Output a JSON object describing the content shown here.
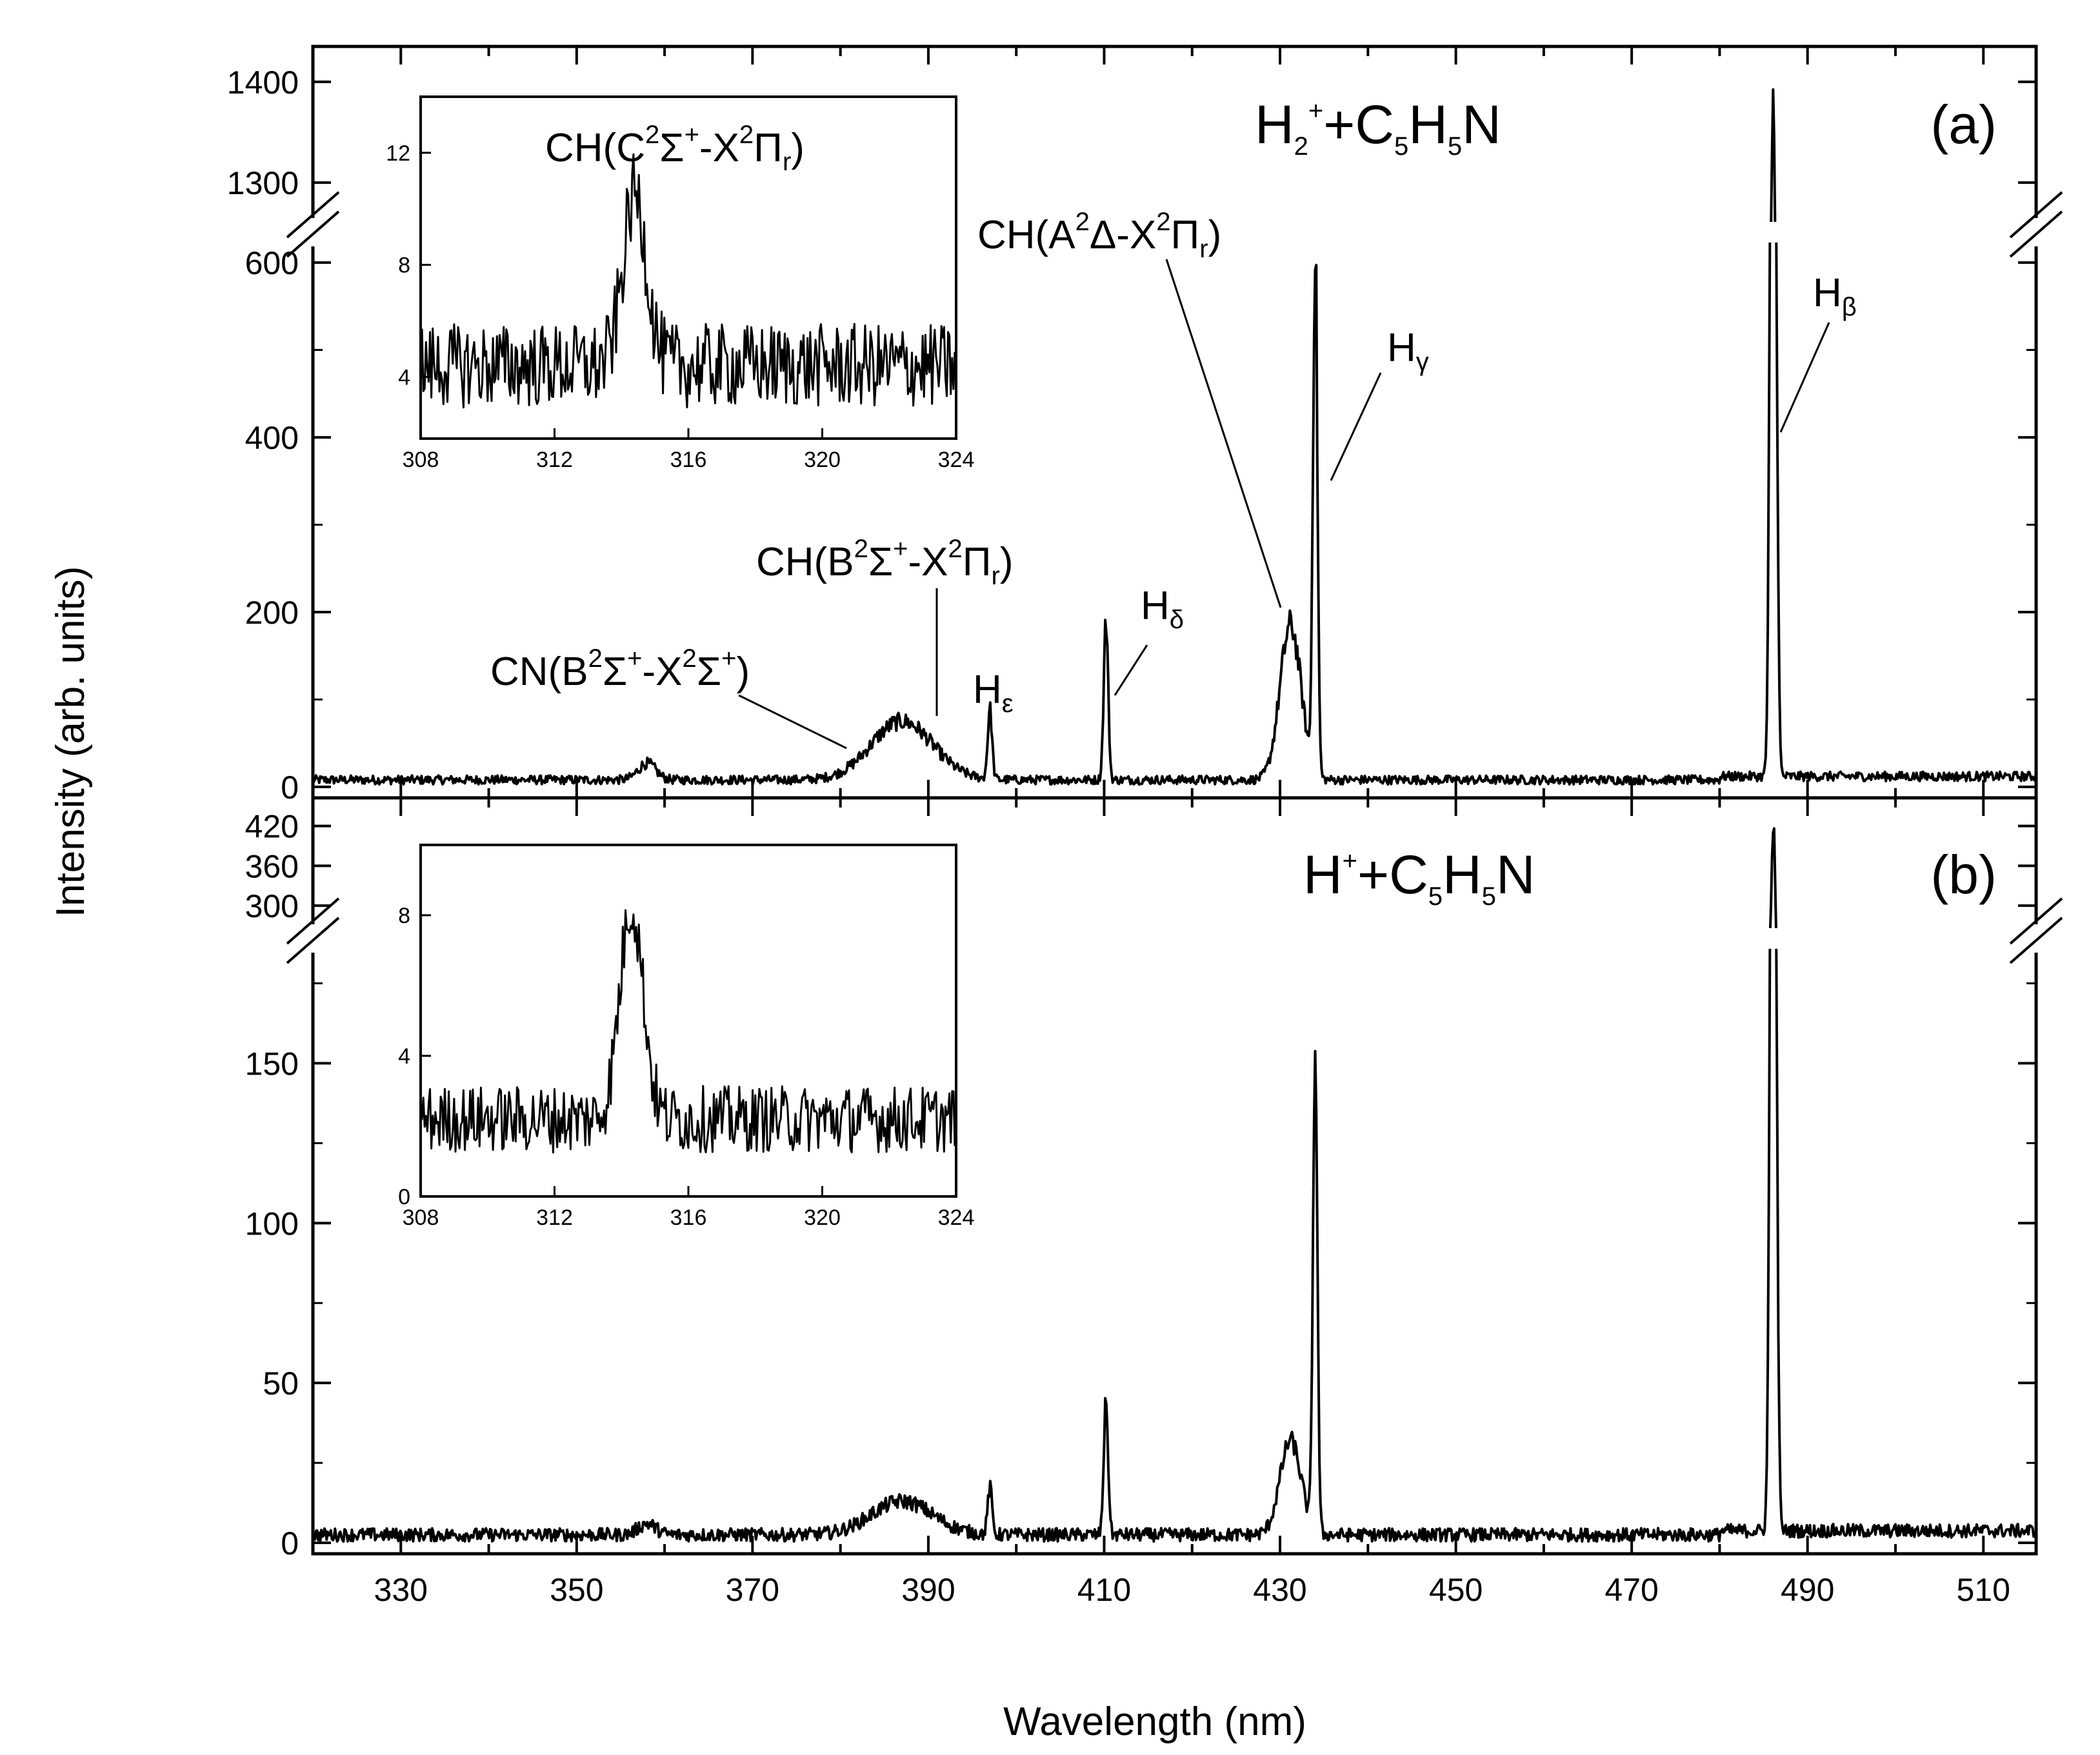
{
  "chart_data": [
    {
      "panel": "a",
      "type": "line",
      "panel_label": "(a)",
      "system_label": {
        "main": "H",
        "sub1": "2",
        "sup1": "+",
        "plus": "+C",
        "sub2": "5",
        "mid": "H",
        "sub3": "5",
        "end": "N"
      },
      "xlabel": "Wavelength (nm)",
      "ylabel": "Intensity (arb. units)",
      "xlim": [
        320,
        516
      ],
      "ylim_lower": [
        0,
        620
      ],
      "ylim_upper": [
        1270,
        1430
      ],
      "yticks_lower": [
        "0",
        "200",
        "400",
        "600"
      ],
      "yticks_upper": [
        "1300",
        "1400"
      ],
      "baseline": 8,
      "peaks": [
        {
          "x": 358,
          "y": 27,
          "width": 1.0
        },
        {
          "x": 387,
          "y": 75,
          "width": 3.5
        },
        {
          "x": 397,
          "y": 87,
          "width": 0.25
        },
        {
          "x": 410.2,
          "y": 190,
          "width": 0.25
        },
        {
          "x": 431.2,
          "y": 185,
          "width": 1.2
        },
        {
          "x": 434.0,
          "y": 610,
          "width": 0.25
        },
        {
          "x": 486.1,
          "y": 1420,
          "width": 0.3
        }
      ],
      "annotations": [
        {
          "id": "cn",
          "prefix": "CN(B",
          "sup1": "2",
          "mid1": "Σ",
          "sup2": "+",
          "mid2": "-X",
          "sup3": "2",
          "mid3": "Σ",
          "sup4": "+",
          "end": ")",
          "x": 382,
          "y": 50
        },
        {
          "id": "chb",
          "prefix": "CH(B",
          "sup1": "2",
          "mid1": "Σ",
          "sup2": "+",
          "mid2": "-X",
          "sup3": "2",
          "mid3": "Π",
          "sub": "r",
          "end": ")",
          "x": 392,
          "y": 80
        },
        {
          "id": "he",
          "main": "H",
          "sub": "ε",
          "x": 397,
          "y": 87
        },
        {
          "id": "hd",
          "main": "H",
          "sub": "δ",
          "x": 411,
          "y": 100
        },
        {
          "id": "cha",
          "prefix": "CH(A",
          "sup1": "2",
          "mid1": "Δ",
          "mid2": "-X",
          "sup3": "2",
          "mid3": "Π",
          "sub": "r",
          "end": ")",
          "x": 431,
          "y": 210
        },
        {
          "id": "hg",
          "main": "H",
          "sub": "γ",
          "x": 435,
          "y": 350
        },
        {
          "id": "hb",
          "main": "H",
          "sub": "β",
          "x": 487,
          "y": 410
        }
      ],
      "inset": {
        "title": {
          "prefix": "CH(C",
          "sup1": "2",
          "mid1": "Σ",
          "sup2": "+",
          "mid2": "-X",
          "sup3": "2",
          "mid3": "Π",
          "sub": "r",
          "end": ")"
        },
        "xlim": [
          308,
          324
        ],
        "ylim": [
          1.8,
          14
        ],
        "xticks": [
          "308",
          "312",
          "316",
          "320",
          "324"
        ],
        "yticks": [
          "4",
          "8",
          "12"
        ],
        "baseline": 4.4,
        "peak": {
          "x": 314.4,
          "y": 10.5,
          "width": 0.35
        }
      }
    },
    {
      "panel": "b",
      "type": "line",
      "panel_label": "(b)",
      "system_label": {
        "main": "H",
        "sup1": "+",
        "plus": "+C",
        "sub2": "5",
        "mid": "H",
        "sub3": "5",
        "end": "N"
      },
      "xlim": [
        320,
        516
      ],
      "ylim_lower": [
        0,
        185
      ],
      "ylim_upper": [
        270,
        440
      ],
      "yticks_lower": [
        "0",
        "50",
        "100",
        "150"
      ],
      "yticks_upper": [
        "300",
        "360",
        "420"
      ],
      "baseline": 2.5,
      "peaks": [
        {
          "x": 358,
          "y": 6,
          "width": 1.0
        },
        {
          "x": 387,
          "y": 13,
          "width": 3.5
        },
        {
          "x": 397,
          "y": 17,
          "width": 0.25
        },
        {
          "x": 410.2,
          "y": 44,
          "width": 0.25
        },
        {
          "x": 431.2,
          "y": 32,
          "width": 1.2
        },
        {
          "x": 434.0,
          "y": 152,
          "width": 0.25
        },
        {
          "x": 486.1,
          "y": 425,
          "width": 0.3
        }
      ],
      "inset": {
        "xlim": [
          308,
          324
        ],
        "ylim": [
          0,
          10
        ],
        "xticks": [
          "308",
          "312",
          "316",
          "320",
          "324"
        ],
        "yticks": [
          "0",
          "4",
          "8"
        ],
        "baseline": 2.2,
        "peak": {
          "x": 314.3,
          "y": 8.3,
          "width": 0.35
        }
      }
    }
  ],
  "xticks": [
    "330",
    "350",
    "370",
    "390",
    "410",
    "430",
    "450",
    "470",
    "490",
    "510"
  ]
}
